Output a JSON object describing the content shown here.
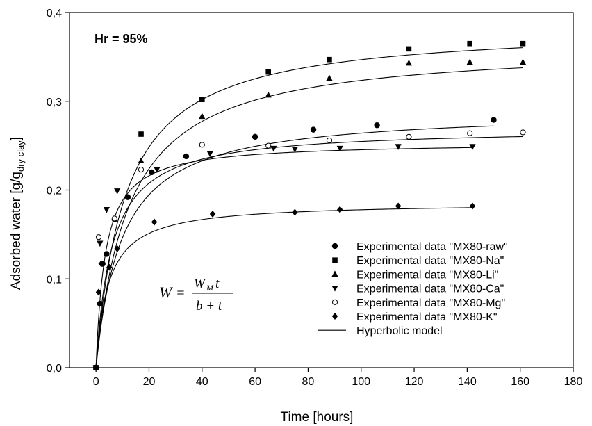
{
  "chart_data": {
    "type": "scatter",
    "title": "",
    "annotation": "Hr = 95%",
    "formula": {
      "lhs": "W",
      "num_var": "W",
      "num_sub": "M",
      "num_t": "t",
      "den": "b + t"
    },
    "xlabel": "Time [hours]",
    "ylabel": {
      "main": "Adsorbed water [g/g",
      "sub": "dry clay",
      "close": "]"
    },
    "xlim": [
      -10,
      180
    ],
    "ylim": [
      0,
      0.4
    ],
    "xticks": [
      0,
      20,
      40,
      60,
      80,
      100,
      120,
      140,
      160,
      180
    ],
    "yticks": [
      0.0,
      0.1,
      0.2,
      0.3,
      0.4
    ],
    "xtick_labels": [
      "0",
      "20",
      "40",
      "60",
      "80",
      "100",
      "120",
      "140",
      "160",
      "180"
    ],
    "ytick_labels": [
      "0,0",
      "0,1",
      "0,2",
      "0,3",
      "0,4"
    ],
    "legend_position": "bottom-right",
    "series": [
      {
        "name": "Experimental data \"MX80-raw\"",
        "marker": "circle",
        "x": [
          0,
          1.5,
          2.5,
          4,
          7,
          12,
          21,
          34,
          60,
          82,
          106,
          150
        ],
        "y": [
          0,
          0.072,
          0.117,
          0.128,
          0.167,
          0.192,
          0.22,
          0.238,
          0.26,
          0.268,
          0.273,
          0.279
        ]
      },
      {
        "name": "Experimental data \"MX80-Na\"",
        "marker": "square",
        "x": [
          0,
          17,
          40,
          65,
          88,
          118,
          141,
          161
        ],
        "y": [
          0,
          0.263,
          0.302,
          0.333,
          0.347,
          0.359,
          0.365,
          0.365
        ]
      },
      {
        "name": "Experimental data \"MX80-Li\"",
        "marker": "triangle-up",
        "x": [
          0,
          17,
          40,
          65,
          88,
          118,
          141,
          161
        ],
        "y": [
          0,
          0.233,
          0.283,
          0.307,
          0.326,
          0.343,
          0.344,
          0.344
        ]
      },
      {
        "name": "Experimental data \"MX80-Ca\"",
        "marker": "triangle-down",
        "x": [
          0,
          1.5,
          4,
          8,
          23,
          43,
          67,
          75,
          92,
          114,
          142
        ],
        "y": [
          0,
          0.14,
          0.178,
          0.199,
          0.223,
          0.241,
          0.247,
          0.246,
          0.247,
          0.249,
          0.249
        ]
      },
      {
        "name": "Experimental data \"MX80-Mg\"",
        "marker": "circle-open",
        "x": [
          0,
          1,
          7,
          17,
          40,
          65,
          88,
          118,
          141,
          161
        ],
        "y": [
          0,
          0.147,
          0.168,
          0.223,
          0.251,
          0.25,
          0.256,
          0.26,
          0.264,
          0.265
        ]
      },
      {
        "name": "Experimental data \"MX80-K\"",
        "marker": "diamond",
        "x": [
          0,
          1,
          2,
          5,
          8,
          22,
          44,
          75,
          92,
          114,
          142
        ],
        "y": [
          0,
          0.085,
          0.117,
          0.113,
          0.134,
          0.164,
          0.173,
          0.175,
          0.178,
          0.182,
          0.182
        ]
      }
    ],
    "model": {
      "name": "Hyperbolic model",
      "curves": [
        {
          "WM": 0.385,
          "b": 11,
          "xmax": 161
        },
        {
          "WM": 0.364,
          "b": 12.5,
          "xmax": 161
        },
        {
          "WM": 0.29,
          "b": 9.8,
          "xmax": 150
        },
        {
          "WM": 0.254,
          "b": 3.5,
          "xmax": 142
        },
        {
          "WM": 0.27,
          "b": 6,
          "xmax": 161
        },
        {
          "WM": 0.186,
          "b": 4.6,
          "xmax": 142
        }
      ]
    }
  }
}
